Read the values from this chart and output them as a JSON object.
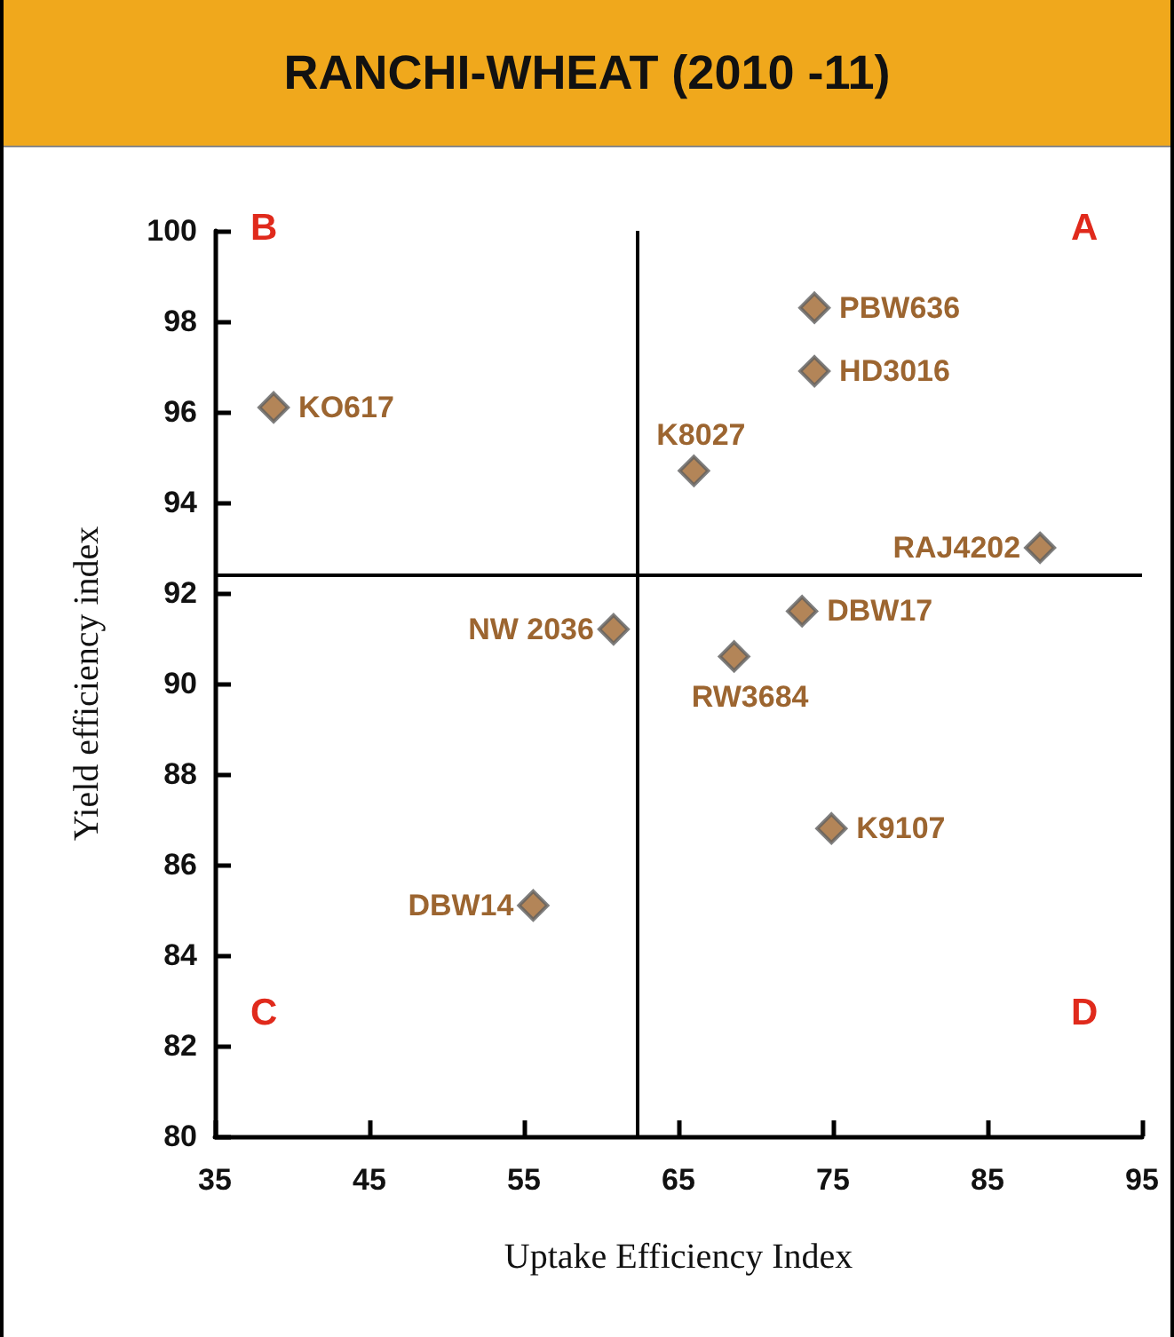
{
  "chart_data": {
    "type": "scatter",
    "title": "RANCHI-WHEAT (2010 -11)",
    "xlabel": "Uptake Efficiency Index",
    "ylabel": "Yield efficiency index",
    "x": [
      73.8,
      73.8,
      38.8,
      66.0,
      88.4,
      73.0,
      60.8,
      68.6,
      74.9,
      55.6
    ],
    "series": [
      {
        "color": "#a0662e",
        "values": [
          98.3,
          96.9,
          96.1,
          94.7,
          93.0,
          91.6,
          91.2,
          90.6,
          86.8,
          85.1
        ]
      }
    ],
    "xlim": [
      35,
      95
    ],
    "xticks": [
      35,
      45,
      55,
      65,
      75,
      85,
      95
    ],
    "ylim": [
      80,
      100
    ],
    "yticks": [
      80,
      82,
      84,
      86,
      88,
      90,
      92,
      94,
      96,
      98,
      100
    ],
    "ref_lines": [
      {
        "axis": "x",
        "value": 62.3,
        "color": "#000000"
      },
      {
        "axis": "y",
        "value": 92.4,
        "color": "#000000"
      }
    ],
    "annotations": [
      "B",
      "A",
      "C",
      "D",
      {
        "text": "PBW636",
        "x": 73.8,
        "y": 98.3
      },
      {
        "text": "HD3016",
        "x": 73.8,
        "y": 96.9
      },
      {
        "text": "KO617",
        "x": 38.8,
        "y": 96.1
      },
      {
        "text": "K8027",
        "x": 66.0,
        "y": 94.7
      },
      {
        "text": "RAJ4202",
        "x": 88.4,
        "y": 93.0
      },
      {
        "text": "DBW17",
        "x": 73.0,
        "y": 91.6
      },
      {
        "text": "NW 2036",
        "x": 60.8,
        "y": 91.2
      },
      {
        "text": "RW3684",
        "x": 68.6,
        "y": 90.6
      },
      {
        "text": "K9107",
        "x": 74.9,
        "y": 86.8
      },
      {
        "text": "DBW14",
        "x": 55.6,
        "y": 85.1
      }
    ],
    "marker": "diamond",
    "grid": false
  }
}
